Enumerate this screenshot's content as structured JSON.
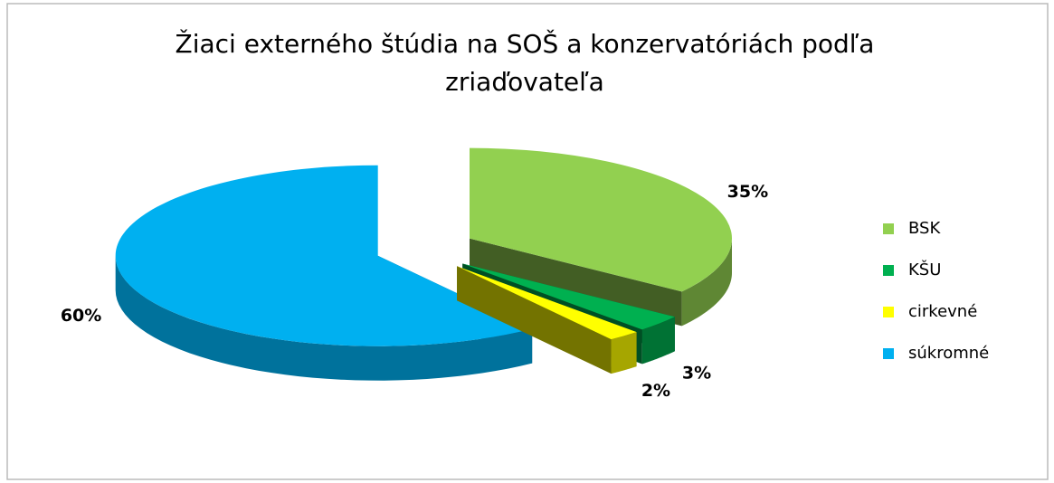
{
  "chart_data": {
    "type": "pie",
    "title": "Žiaci externého štúdia na SOŠ a konzervatóriách podľa zriaďovateľa",
    "categories": [
      "BSK",
      "KŠU",
      "cirkevné",
      "súkromné"
    ],
    "values": [
      35,
      3,
      2,
      60
    ],
    "value_labels": [
      "35%",
      "3%",
      "2%",
      "60%"
    ],
    "colors": [
      "#92d050",
      "#00b050",
      "#ffff00",
      "#00b0f0"
    ],
    "legend": "right"
  }
}
